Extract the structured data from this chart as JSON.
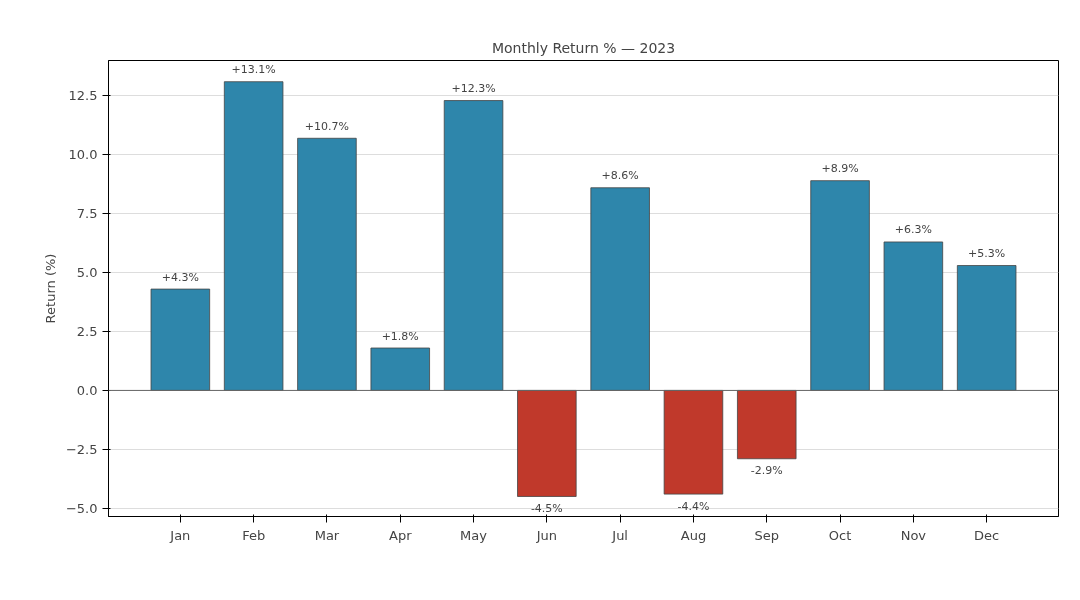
{
  "chart_data": {
    "type": "bar",
    "title": "Monthly Return % — 2023",
    "ylabel": "Return (%)",
    "categories": [
      "Jan",
      "Feb",
      "Mar",
      "Apr",
      "May",
      "Jun",
      "Jul",
      "Aug",
      "Sep",
      "Oct",
      "Nov",
      "Dec"
    ],
    "values": [
      4.3,
      13.1,
      10.7,
      1.8,
      12.3,
      -4.5,
      8.6,
      -4.4,
      -2.9,
      8.9,
      6.3,
      5.3
    ],
    "value_labels": [
      "+4.3%",
      "+13.1%",
      "+10.7%",
      "+1.8%",
      "+12.3%",
      "-4.5%",
      "+8.6%",
      "-4.4%",
      "-2.9%",
      "+8.9%",
      "+6.3%",
      "+5.3%"
    ],
    "colors": [
      "#2e86ab",
      "#2e86ab",
      "#2e86ab",
      "#2e86ab",
      "#2e86ab",
      "#c0392b",
      "#2e86ab",
      "#c0392b",
      "#c0392b",
      "#2e86ab",
      "#2e86ab",
      "#2e86ab"
    ],
    "ylim": [
      -5.35,
      14.0
    ],
    "yticks": [
      {
        "value": -5,
        "label": "−5.0"
      },
      {
        "value": -2.5,
        "label": "−2.5"
      },
      {
        "value": 0,
        "label": "0.0"
      },
      2.5,
      {
        "value": 5,
        "label": "5.0"
      },
      7.5,
      {
        "value": 10,
        "label": "10.0"
      },
      12.5
    ],
    "grid": "y",
    "ref_lines": [
      {
        "axis": "y",
        "value": 0,
        "color": "#666666"
      }
    ]
  }
}
